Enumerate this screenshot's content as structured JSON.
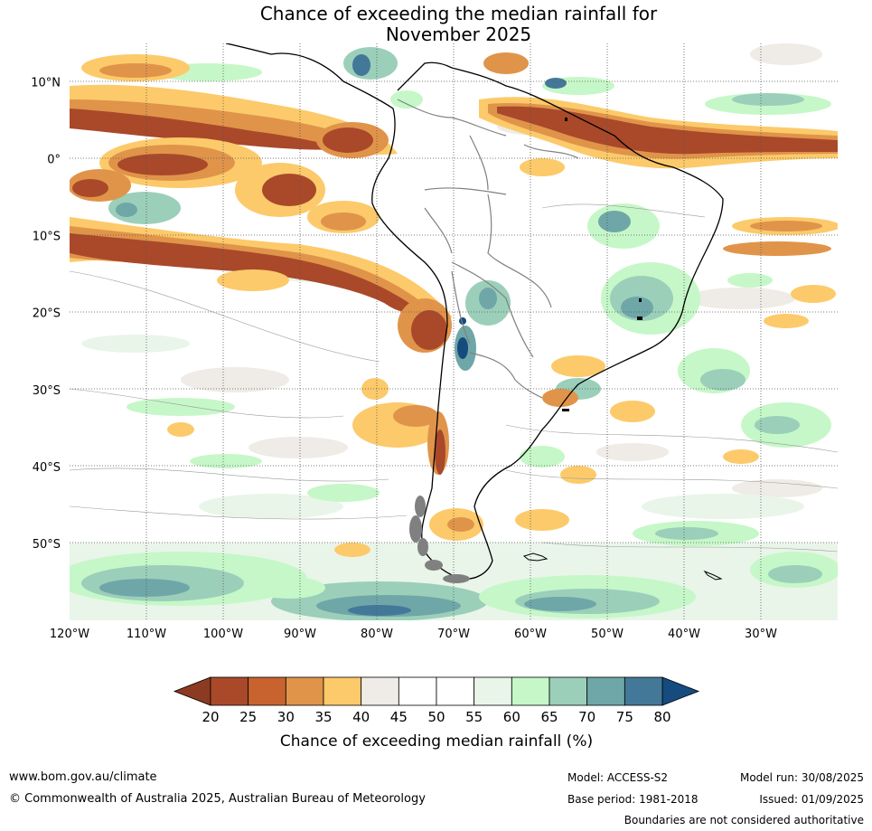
{
  "title_line1": "Chance of exceeding the median rainfall for",
  "title_line2": "November 2025",
  "lat_ticks": [
    {
      "label": "10°N",
      "lat": 10
    },
    {
      "label": "0°",
      "lat": 0
    },
    {
      "label": "10°S",
      "lat": -10
    },
    {
      "label": "20°S",
      "lat": -20
    },
    {
      "label": "30°S",
      "lat": -30
    },
    {
      "label": "40°S",
      "lat": -40
    },
    {
      "label": "50°S",
      "lat": -50
    }
  ],
  "lon_ticks": [
    {
      "label": "120°W",
      "lon": -120
    },
    {
      "label": "110°W",
      "lon": -110
    },
    {
      "label": "100°W",
      "lon": -100
    },
    {
      "label": "90°W",
      "lon": -90
    },
    {
      "label": "80°W",
      "lon": -80
    },
    {
      "label": "70°W",
      "lon": -70
    },
    {
      "label": "60°W",
      "lon": -60
    },
    {
      "label": "50°W",
      "lon": -50
    },
    {
      "label": "40°W",
      "lon": -40
    },
    {
      "label": "30°W",
      "lon": -30
    }
  ],
  "map_extent": {
    "lon_min": -120,
    "lon_max": -20,
    "lat_min": -60,
    "lat_max": 15
  },
  "colorbar": {
    "ticks": [
      "20",
      "25",
      "30",
      "35",
      "40",
      "45",
      "50",
      "55",
      "60",
      "65",
      "70",
      "75",
      "80"
    ],
    "colors": [
      "#a9492a",
      "#c8632f",
      "#e0944a",
      "#fcca6a",
      "#efebe6",
      "#ffffff",
      "#ffffff",
      "#e9f5e9",
      "#c6f7c8",
      "#9bcfba",
      "#6fa7a8",
      "#447898"
    ],
    "under_color": "#8c3a21",
    "over_color": "#154b7e",
    "label": "Chance of exceeding median rainfall (%)"
  },
  "footer": {
    "website": "www.bom.gov.au/climate",
    "copyright": "© Commonwealth of Australia 2025, Australian Bureau of Meteorology",
    "model": "Model: ACCESS-S2",
    "base_period": "Base period: 1981-2018",
    "model_run": "Model run: 30/08/2025",
    "issued": "Issued: 01/09/2025",
    "disclaimer": "Boundaries are not considered authoritative"
  },
  "palette": {
    "dark_brown": "#8c3a21",
    "brown": "#a9492a",
    "orange": "#c8632f",
    "light_orange": "#e0944a",
    "yellow": "#fcca6a",
    "gray": "#efebe6",
    "pale_green": "#e9f5e9",
    "light_green": "#c6f7c8",
    "teal_light": "#9bcfba",
    "teal": "#6fa7a8",
    "blue": "#447898",
    "dark_blue": "#154b7e"
  }
}
